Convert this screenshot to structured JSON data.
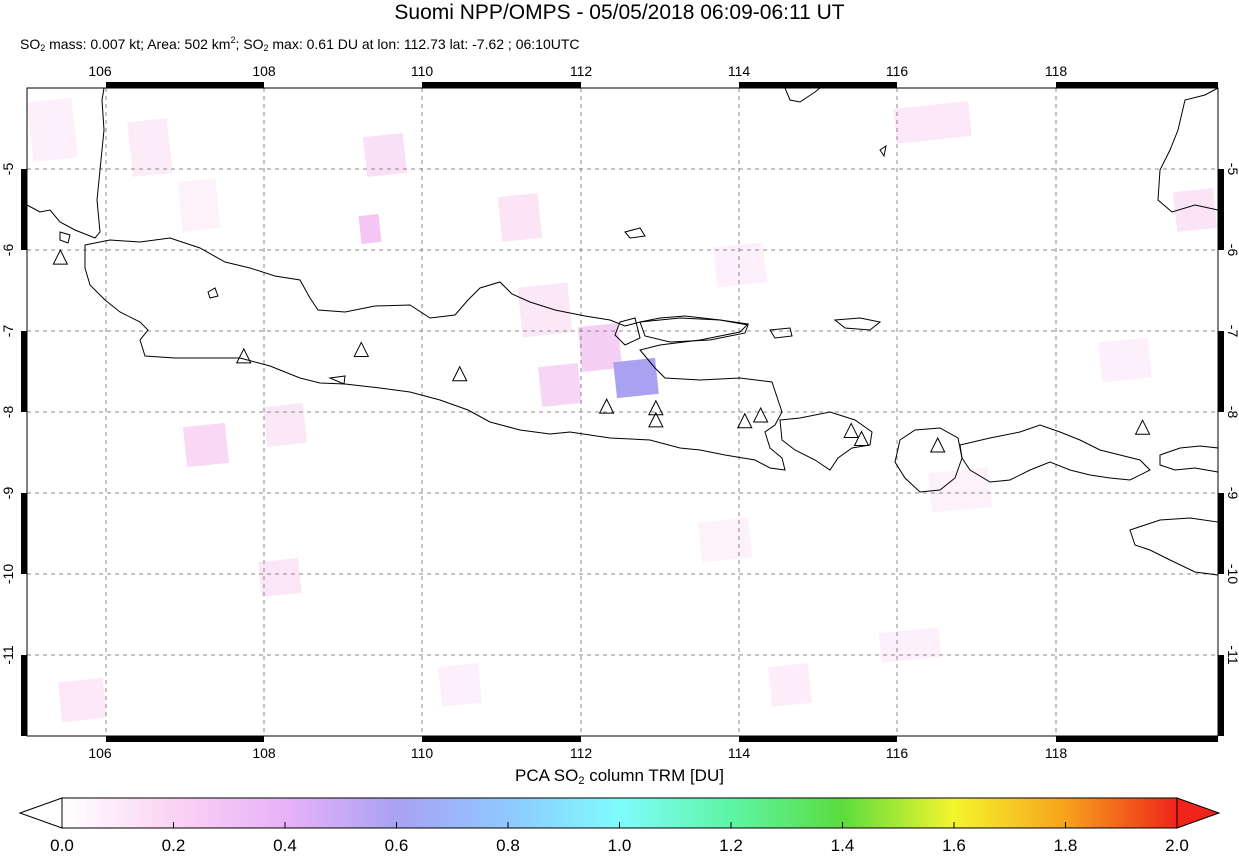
{
  "title": "Suomi NPP/OMPS - 05/05/2018 06:09-06:11 UT",
  "subtitle": {
    "part1": "SO",
    "sub1": "2",
    "part2": " mass: 0.007 kt; Area: 502 km",
    "sup": "2",
    "part3": "; SO",
    "sub2": "2",
    "part4": " max: 0.61 DU at lon: 112.73 lat: -7.62 ; 06:10UTC"
  },
  "map": {
    "lon_range": [
      105,
      120
    ],
    "lat_range": [
      -12,
      -4
    ],
    "lon_ticks": [
      "106",
      "108",
      "110",
      "112",
      "114",
      "116",
      "118"
    ],
    "lat_ticks": [
      "-5",
      "-6",
      "-7",
      "-8",
      "-9",
      "-10",
      "-11"
    ],
    "grid": "dashed",
    "volcano_marker": "triangle-outline",
    "volcanoes": [
      {
        "lon": 105.42,
        "lat": -6.1
      },
      {
        "lon": 107.73,
        "lat": -7.32
      },
      {
        "lon": 109.21,
        "lat": -7.24
      },
      {
        "lon": 110.45,
        "lat": -7.54
      },
      {
        "lon": 112.3,
        "lat": -7.94
      },
      {
        "lon": 112.92,
        "lat": -7.96
      },
      {
        "lon": 112.92,
        "lat": -8.11
      },
      {
        "lon": 114.04,
        "lat": -8.12
      },
      {
        "lon": 114.24,
        "lat": -8.05
      },
      {
        "lon": 115.38,
        "lat": -8.24
      },
      {
        "lon": 115.51,
        "lat": -8.34
      },
      {
        "lon": 116.47,
        "lat": -8.42
      },
      {
        "lon": 119.05,
        "lat": -8.2
      }
    ],
    "so2_max": {
      "lon": 112.73,
      "lat": -7.62,
      "value": 0.61
    },
    "colors": {
      "land_outline": "#000000",
      "grid": "#888888"
    }
  },
  "colorbar": {
    "title_pre": "PCA SO",
    "title_sub": "2",
    "title_post": " column TRM [DU]",
    "min": 0.0,
    "max": 2.0,
    "ticks": [
      "0.0",
      "0.2",
      "0.4",
      "0.6",
      "0.8",
      "1.0",
      "1.2",
      "1.4",
      "1.6",
      "1.8",
      "2.0"
    ],
    "colors": [
      "#ffffff",
      "#fbd3f3",
      "#e8b2f8",
      "#a9a2f2",
      "#8fc8ff",
      "#7ffcfc",
      "#5df5a6",
      "#5cdc3f",
      "#f4f52c",
      "#f7a21c",
      "#f0241a"
    ]
  }
}
